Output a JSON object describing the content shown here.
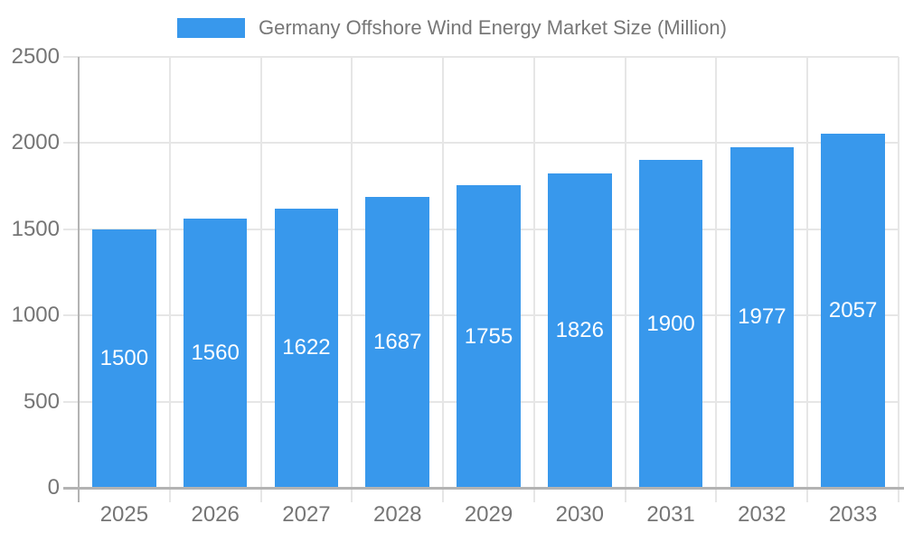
{
  "legend": {
    "label": "Germany Offshore Wind Energy Market Size (Million)"
  },
  "chart_data": {
    "type": "bar",
    "title": "Germany Offshore Wind Energy Market Size (Million)",
    "series_name": "Germany Offshore Wind Energy Market Size (Million)",
    "categories": [
      "2025",
      "2026",
      "2027",
      "2028",
      "2029",
      "2030",
      "2031",
      "2032",
      "2033"
    ],
    "values": [
      1500,
      1560,
      1622,
      1687,
      1755,
      1826,
      1900,
      1977,
      2057
    ],
    "xlabel": "",
    "ylabel": "",
    "ylim": [
      0,
      2500
    ],
    "yticks": [
      0,
      500,
      1000,
      1500,
      2000,
      2500
    ],
    "grid": true,
    "legend_position": "top",
    "value_labels_inside_bars": true
  },
  "colors": {
    "bar": "#3898EC",
    "grid": "#E6E6E6",
    "axis_line": "#B3B3B3",
    "tick_text": "#757575",
    "legend_text": "#777777",
    "bar_label_text": "#FFFFFF",
    "background": "#FFFFFF"
  }
}
